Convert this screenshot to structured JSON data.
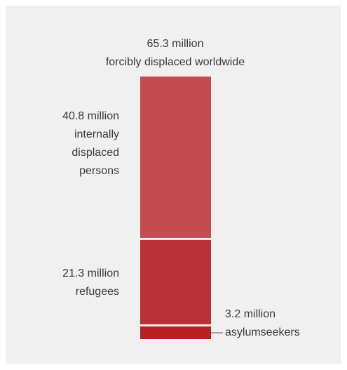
{
  "chart_data": {
    "type": "bar",
    "stacked": true,
    "title_lines": [
      "65.3 million",
      "forcibly displaced worldwide"
    ],
    "total": 65.3,
    "unit": "million",
    "segments": [
      {
        "value": 40.8,
        "color": "#c24c51",
        "label_lines": [
          "40.8 million",
          "internally",
          "displaced",
          "persons"
        ]
      },
      {
        "value": 21.3,
        "color": "#ba3238",
        "label_lines": [
          "21.3 million",
          "refugees"
        ]
      },
      {
        "value": 3.2,
        "color": "#b72025",
        "label_lines": [
          "3.2 million",
          "asylumseekers"
        ]
      }
    ]
  }
}
